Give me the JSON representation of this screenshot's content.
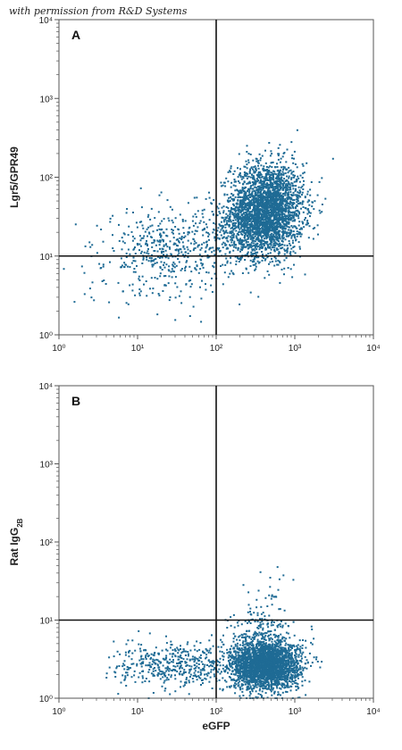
{
  "watermark": "with permission from R&D Systems",
  "colors": {
    "dots": "#1f6b95",
    "frame": "#555555",
    "gates": "#111111"
  },
  "chart_data": [
    {
      "type": "scatter",
      "panel_label": "A",
      "xlabel": "",
      "ylabel": "Lgr5/GPR49",
      "x_scale": "log",
      "y_scale": "log",
      "xlim": [
        1,
        10000
      ],
      "ylim": [
        1,
        10000
      ],
      "x_ticks": [
        "10⁰",
        "10¹",
        "10²",
        "10³",
        "10⁴"
      ],
      "y_ticks": [
        "10⁰",
        "10¹",
        "10²",
        "10³",
        "10⁴"
      ],
      "quadrant_gates": {
        "x": 100,
        "y": 10
      },
      "grid": false,
      "populations": [
        {
          "center": [
            450,
            40
          ],
          "spread_log10": [
            0.23,
            0.29
          ],
          "count": 2600
        },
        {
          "center": [
            250,
            22
          ],
          "spread_log10": [
            0.25,
            0.2
          ],
          "count": 500
        },
        {
          "center": [
            25,
            12
          ],
          "spread_log10": [
            0.4,
            0.26
          ],
          "count": 480
        },
        {
          "center": [
            8,
            3.5
          ],
          "spread_log10": [
            0.35,
            0.18
          ],
          "count": 25
        }
      ]
    },
    {
      "type": "scatter",
      "panel_label": "B",
      "xlabel": "eGFP",
      "ylabel": "Rat IgG",
      "ylabel_sub": "2B",
      "x_scale": "log",
      "y_scale": "log",
      "xlim": [
        1,
        10000
      ],
      "ylim": [
        1,
        10000
      ],
      "x_ticks": [
        "10⁰",
        "10¹",
        "10²",
        "10³",
        "10⁴"
      ],
      "y_ticks": [
        "10⁰",
        "10¹",
        "10²",
        "10³",
        "10⁴"
      ],
      "quadrant_gates": {
        "x": 100,
        "y": 10
      },
      "grid": false,
      "populations": [
        {
          "center": [
            420,
            2.6
          ],
          "spread_log10": [
            0.22,
            0.15
          ],
          "count": 2600
        },
        {
          "center": [
            380,
            6
          ],
          "spread_log10": [
            0.2,
            0.2
          ],
          "count": 260
        },
        {
          "center": [
            30,
            2.6
          ],
          "spread_log10": [
            0.38,
            0.14
          ],
          "count": 450
        },
        {
          "center": [
            500,
            25
          ],
          "spread_log10": [
            0.1,
            0.2
          ],
          "count": 25
        }
      ]
    }
  ]
}
